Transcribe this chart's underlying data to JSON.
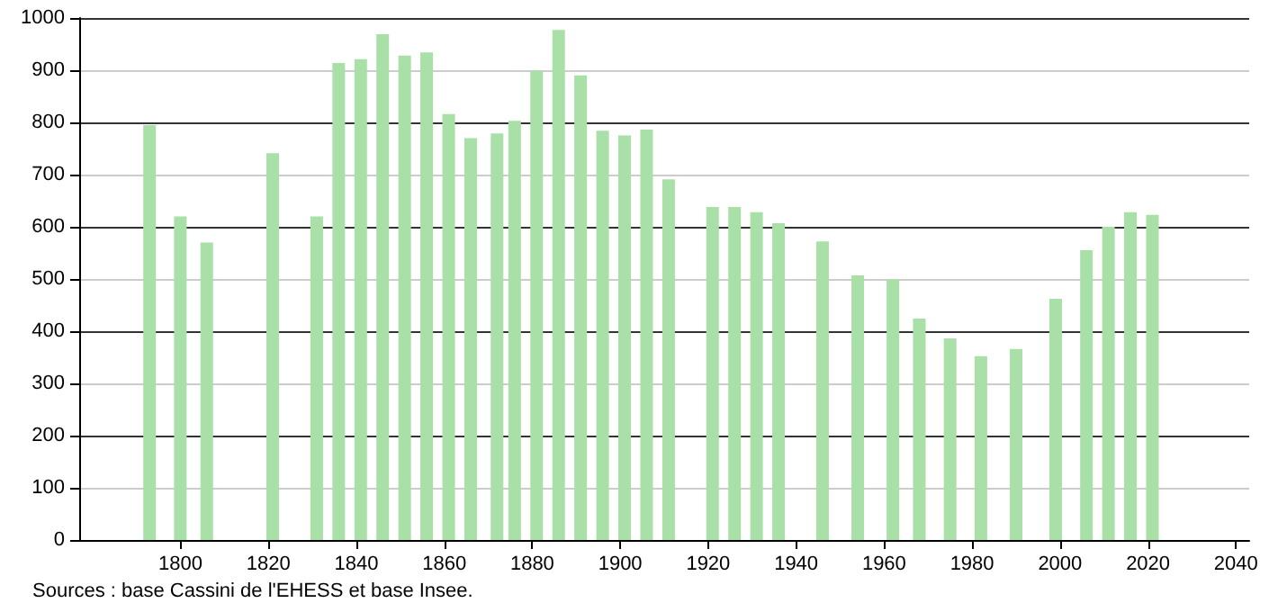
{
  "chart_data": {
    "type": "bar",
    "x": [
      1793,
      1800,
      1806,
      1821,
      1831,
      1836,
      1841,
      1846,
      1851,
      1856,
      1861,
      1866,
      1872,
      1876,
      1881,
      1886,
      1891,
      1896,
      1901,
      1906,
      1911,
      1921,
      1926,
      1931,
      1936,
      1946,
      1954,
      1962,
      1968,
      1975,
      1982,
      1990,
      1999,
      2006,
      2011,
      2016,
      2021
    ],
    "values": [
      795,
      620,
      570,
      741,
      620,
      914,
      921,
      969,
      928,
      934,
      816,
      770,
      779,
      803,
      899,
      977,
      890,
      784,
      775,
      786,
      691,
      638,
      638,
      628,
      607,
      572,
      507,
      499,
      424,
      386,
      352,
      366,
      462,
      555,
      600,
      628,
      623
    ],
    "color": "#a8e0a8",
    "xlim": [
      1777,
      2043
    ],
    "xticks": [
      1800,
      1820,
      1840,
      1860,
      1880,
      1900,
      1920,
      1940,
      1960,
      1980,
      2000,
      2020,
      2040
    ],
    "ylim": [
      0,
      1000
    ],
    "yticks": [
      0,
      100,
      200,
      300,
      400,
      500,
      600,
      700,
      800,
      900,
      1000
    ],
    "grid": "y",
    "annotations": [
      "Sources : base Cassini de l'EHESS et base Insee."
    ]
  }
}
